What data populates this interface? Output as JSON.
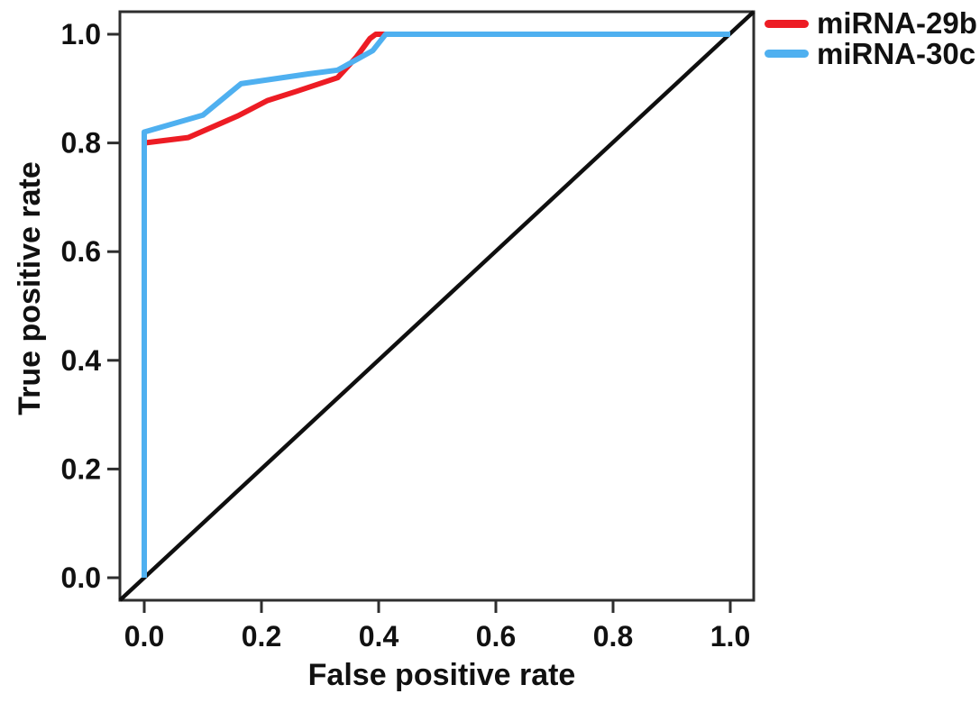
{
  "chart_data": {
    "type": "line",
    "subtype": "roc-curve",
    "title": "",
    "xlabel": "False positive rate",
    "ylabel": "True positive rate",
    "xlim": [
      0,
      1
    ],
    "ylim": [
      0,
      1
    ],
    "grid": false,
    "legend_position": "top-right-outside",
    "frame_color": "#2e2e2e",
    "text_color": "#111111",
    "x_ticks": {
      "values": [
        0.0,
        0.2,
        0.4,
        0.6,
        0.8,
        1.0
      ],
      "labels": [
        "0.0",
        "0.2",
        "0.4",
        "0.6",
        "0.8",
        "1.0"
      ]
    },
    "y_ticks": {
      "values": [
        0.0,
        0.2,
        0.4,
        0.6,
        0.8,
        1.0
      ],
      "labels": [
        "0.0",
        "0.2",
        "0.4",
        "0.6",
        "0.8",
        "1.0"
      ]
    },
    "series": [
      {
        "name": "miRNA-29b",
        "color": "#ed1c24",
        "points": [
          [
            0.0,
            0.0
          ],
          [
            0.0,
            0.8
          ],
          [
            0.075,
            0.81
          ],
          [
            0.16,
            0.85
          ],
          [
            0.21,
            0.878
          ],
          [
            0.26,
            0.895
          ],
          [
            0.33,
            0.92
          ],
          [
            0.362,
            0.958
          ],
          [
            0.385,
            0.992
          ],
          [
            0.395,
            1.0
          ],
          [
            1.0,
            1.0
          ]
        ]
      },
      {
        "name": "miRNA-30c",
        "color": "#4fb0f0",
        "points": [
          [
            0.0,
            0.0
          ],
          [
            0.0,
            0.82
          ],
          [
            0.1,
            0.851
          ],
          [
            0.165,
            0.909
          ],
          [
            0.28,
            0.927
          ],
          [
            0.33,
            0.934
          ],
          [
            0.39,
            0.97
          ],
          [
            0.412,
            1.0
          ],
          [
            1.0,
            1.0
          ]
        ]
      }
    ],
    "reference_line": {
      "color": "#0f0f0f",
      "from": [
        0,
        0
      ],
      "to": [
        1,
        1
      ]
    }
  }
}
